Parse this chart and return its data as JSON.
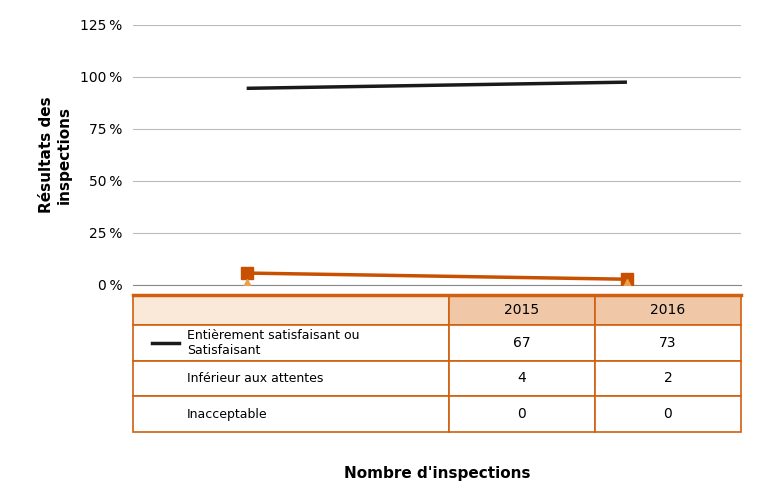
{
  "x_positions": [
    0,
    1
  ],
  "satisfaisant_pct": [
    94.37,
    97.33
  ],
  "inferieur_pct": [
    5.63,
    2.67
  ],
  "inacceptable_pct": [
    0,
    0
  ],
  "ylim": [
    0,
    125
  ],
  "yticks": [
    0,
    25,
    50,
    75,
    100,
    125
  ],
  "ylabel": "Résultats des\ninspections",
  "xlabel": "Nombre d'inspections",
  "color_black": "#1a1a1a",
  "color_orange": "#C85000",
  "color_triangle": "#E8A050",
  "color_table_header": "#F0C8A8",
  "color_table_bg": "#FAE8D8",
  "color_table_border": "#D06010",
  "row_labels": [
    "Entièrement satisfaisant ou\nSatisfaisant",
    "Inférieur aux attentes",
    "Inacceptable"
  ],
  "row_counts": [
    [
      "67",
      "73"
    ],
    [
      "4",
      "2"
    ],
    [
      "0",
      "0"
    ]
  ],
  "col_headers": [
    "2015",
    "2016"
  ]
}
